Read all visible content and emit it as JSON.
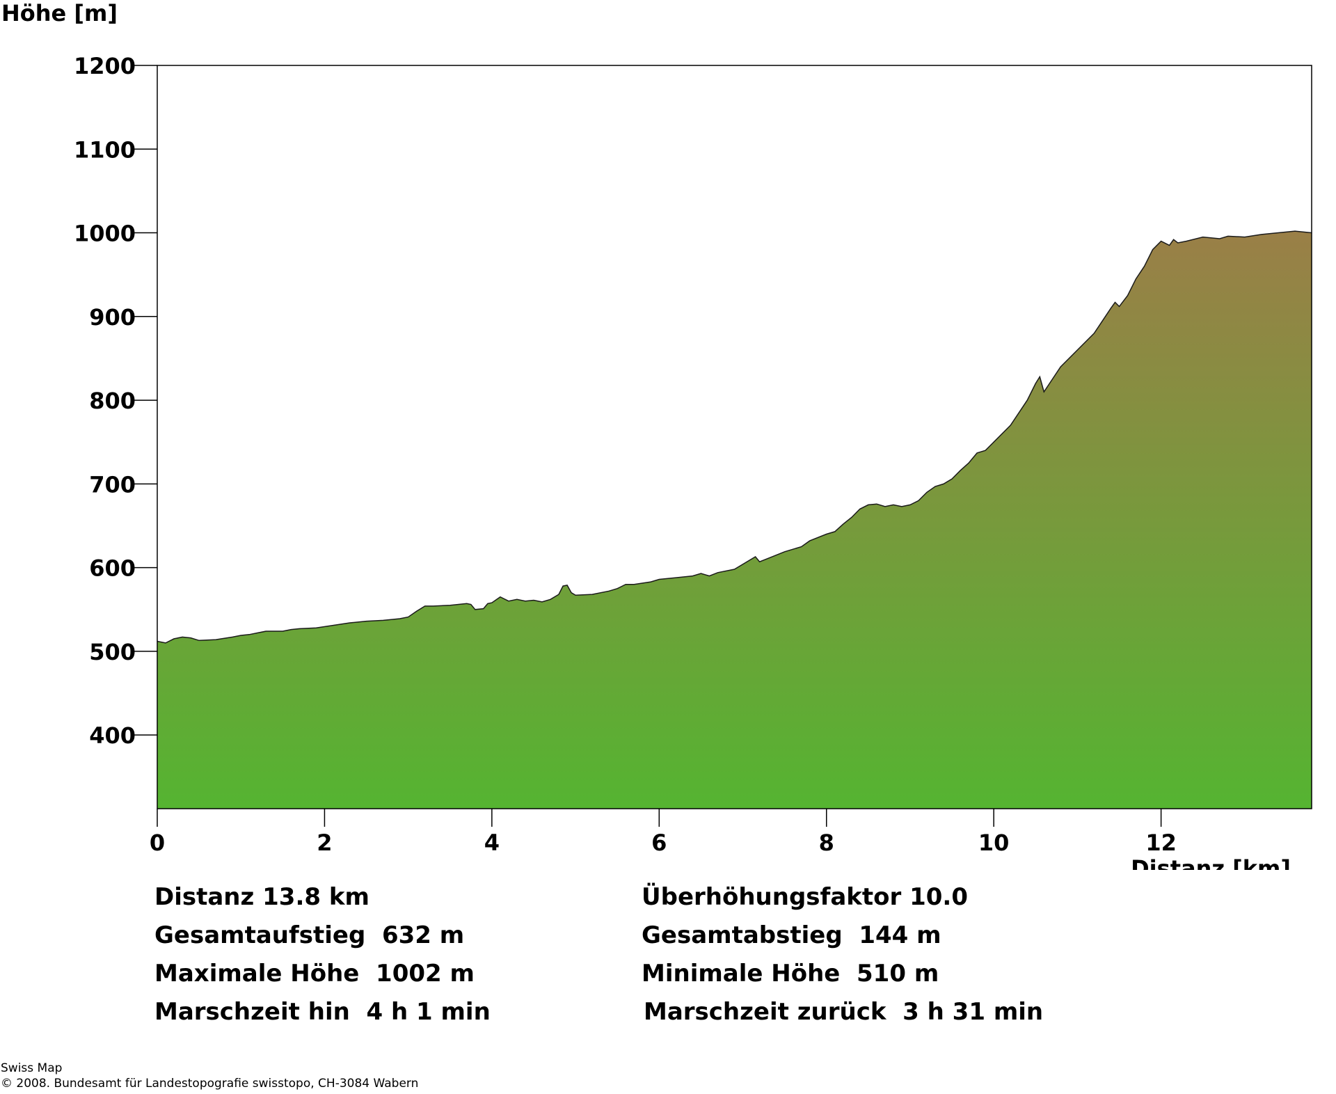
{
  "chart_data": {
    "type": "area",
    "ylabel": "Höhe [m]",
    "xlabel": "Distanz [km]",
    "xlim": [
      0,
      13.8
    ],
    "ylim": [
      312,
      1200
    ],
    "xticks": [
      0,
      2,
      4,
      6,
      8,
      10,
      12
    ],
    "yticks": [
      400,
      500,
      600,
      700,
      800,
      900,
      1000,
      1100,
      1200
    ],
    "grid": false,
    "fill_gradient": {
      "top": "#9a7f47",
      "bottom": "#55b431"
    },
    "profile": {
      "x": [
        0,
        0.1,
        0.2,
        0.3,
        0.4,
        0.5,
        0.7,
        0.9,
        1.0,
        1.1,
        1.2,
        1.3,
        1.5,
        1.6,
        1.7,
        1.9,
        2.1,
        2.3,
        2.5,
        2.7,
        2.9,
        3.0,
        3.1,
        3.2,
        3.3,
        3.5,
        3.7,
        3.75,
        3.8,
        3.9,
        3.95,
        4.0,
        4.1,
        4.2,
        4.3,
        4.4,
        4.5,
        4.6,
        4.7,
        4.8,
        4.85,
        4.9,
        4.95,
        5.0,
        5.2,
        5.4,
        5.5,
        5.6,
        5.7,
        5.9,
        6.0,
        6.2,
        6.4,
        6.5,
        6.6,
        6.7,
        6.9,
        7.1,
        7.15,
        7.2,
        7.3,
        7.5,
        7.7,
        7.8,
        8.0,
        8.1,
        8.2,
        8.3,
        8.4,
        8.5,
        8.6,
        8.7,
        8.8,
        8.9,
        9.0,
        9.1,
        9.2,
        9.3,
        9.4,
        9.5,
        9.6,
        9.7,
        9.8,
        9.9,
        10.0,
        10.2,
        10.4,
        10.5,
        10.55,
        10.6,
        10.7,
        10.8,
        11.0,
        11.2,
        11.3,
        11.4,
        11.45,
        11.5,
        11.6,
        11.7,
        11.8,
        11.9,
        12.0,
        12.1,
        12.15,
        12.2,
        12.3,
        12.5,
        12.7,
        12.8,
        13.0,
        13.2,
        13.4,
        13.6,
        13.8
      ],
      "elevation": [
        512,
        510,
        515,
        517,
        516,
        513,
        514,
        517,
        519,
        520,
        522,
        524,
        524,
        526,
        527,
        528,
        531,
        534,
        536,
        537,
        539,
        541,
        548,
        554,
        554,
        555,
        557,
        556,
        550,
        551,
        557,
        558,
        565,
        560,
        562,
        560,
        561,
        559,
        562,
        568,
        578,
        579,
        570,
        567,
        568,
        572,
        575,
        580,
        580,
        583,
        586,
        588,
        590,
        593,
        590,
        594,
        598,
        610,
        613,
        607,
        611,
        619,
        625,
        632,
        640,
        643,
        652,
        660,
        670,
        675,
        676,
        673,
        675,
        673,
        675,
        680,
        690,
        697,
        700,
        706,
        716,
        725,
        737,
        740,
        750,
        770,
        800,
        820,
        828,
        810,
        825,
        840,
        860,
        880,
        895,
        910,
        917,
        912,
        925,
        945,
        960,
        980,
        990,
        985,
        992,
        988,
        990,
        995,
        993,
        996,
        995,
        998,
        1000,
        1002,
        1000
      ]
    }
  },
  "stats": {
    "distanz": "Distanz 13.8 km",
    "gesamtaufstieg": "Gesamtaufstieg  632 m",
    "maximale_hoehe": "Maximale Höhe  1002 m",
    "marschzeit_hin": "Marschzeit hin  4 h 1 min",
    "ueberhoehungsfaktor": "Überhöhungsfaktor 10.0",
    "gesamtabstieg": "Gesamtabstieg  144 m",
    "minimale_hoehe": "Minimale Höhe  510 m",
    "marschzeit_zurueck": "Marschzeit zurück  3 h 31 min"
  },
  "credits": {
    "line1": "Swiss Map",
    "line2": "© 2008. Bundesamt für Landestopografie swisstopo, CH-3084 Wabern"
  }
}
